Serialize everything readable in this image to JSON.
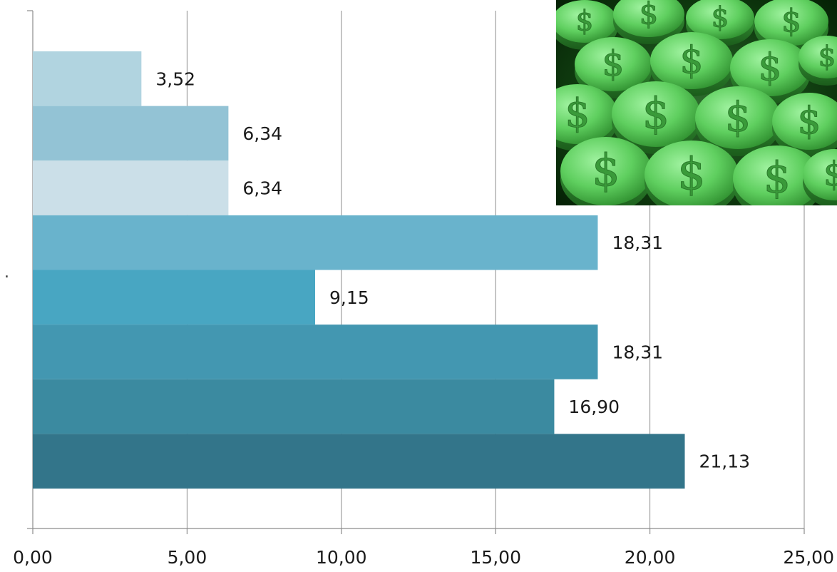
{
  "chart_data": {
    "type": "bar",
    "orientation": "horizontal",
    "title": "",
    "xlabel": "",
    "ylabel": "",
    "categories": [
      "",
      "",
      "",
      "",
      "",
      "",
      "",
      ""
    ],
    "values": [
      3.52,
      6.34,
      6.34,
      18.31,
      9.15,
      18.31,
      16.9,
      21.13
    ],
    "data_labels": [
      "3,52",
      "6,34",
      "6,34",
      "18,31",
      "9,15",
      "18,31",
      "16,90",
      "21,13"
    ],
    "bar_colors": [
      "#b1d4e0",
      "#93c3d5",
      "#cbdfe8",
      "#69b3cc",
      "#48a6c2",
      "#4397b1",
      "#3b8aa0",
      "#33758a"
    ],
    "xlim": [
      0,
      25
    ],
    "x_ticks": [
      0,
      5,
      10,
      15,
      20,
      25
    ],
    "x_tick_labels": [
      "0,00",
      "5,00",
      "10,00",
      "15,00",
      "20,00",
      "25,00"
    ],
    "grid": "vertical",
    "legend": "none"
  },
  "y_axis_marker": ".",
  "decorative_image": {
    "icon": "green-dollar-coins-photo"
  }
}
